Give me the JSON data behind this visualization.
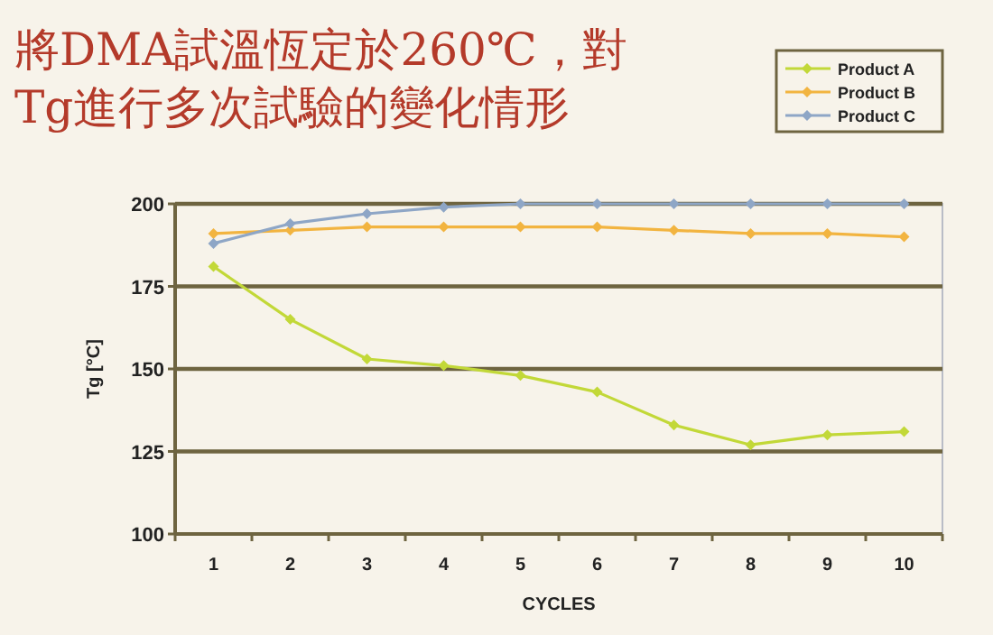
{
  "chart_data": {
    "type": "line",
    "title": "將DMA試溫恆定於260℃，對\nTg進行多次試驗的變化情形",
    "xlabel": "CYCLES",
    "ylabel": "Tg [°C]",
    "categories": [
      "1",
      "2",
      "3",
      "4",
      "5",
      "6",
      "7",
      "8",
      "9",
      "10"
    ],
    "series": [
      {
        "name": "Product A",
        "color": "#c2d838",
        "values": [
          181,
          165,
          153,
          151,
          148,
          143,
          133,
          127,
          130,
          131
        ]
      },
      {
        "name": "Product B",
        "color": "#f2b440",
        "values": [
          191,
          192,
          193,
          193,
          193,
          193,
          192,
          191,
          191,
          190
        ]
      },
      {
        "name": "Product C",
        "color": "#8ea6c6",
        "values": [
          188,
          194,
          197,
          199,
          200,
          200,
          200,
          200,
          200,
          200
        ]
      }
    ],
    "ylim": [
      100,
      200
    ],
    "yticks": [
      100,
      125,
      150,
      175,
      200
    ],
    "grid": "y",
    "legend": "top right",
    "marker": "diamond",
    "line_style": "solid"
  }
}
